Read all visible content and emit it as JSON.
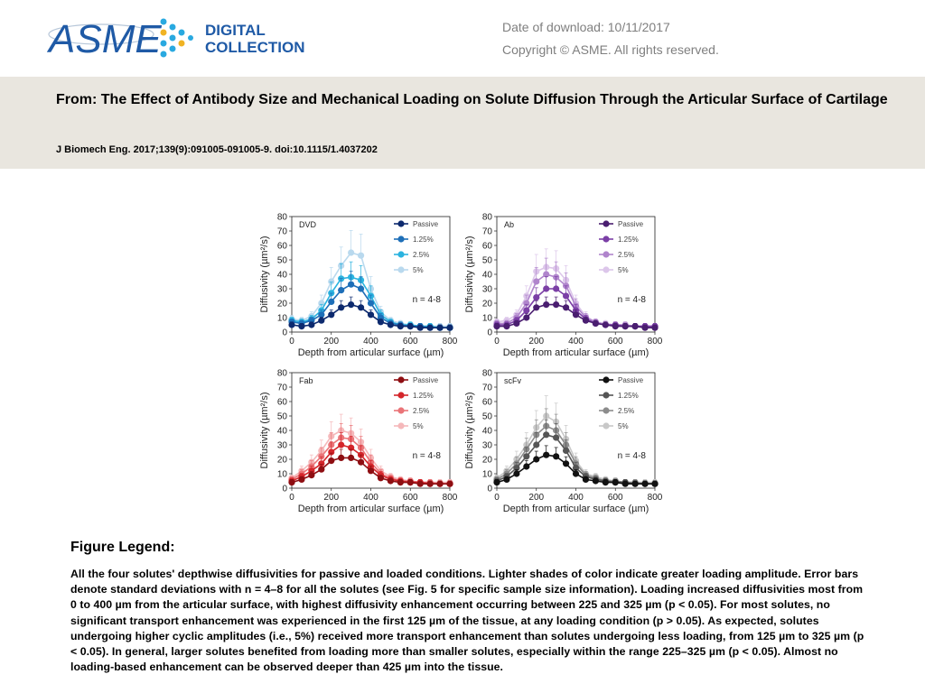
{
  "header": {
    "logo_text": "ASME",
    "logo_sub_1": "DIGITAL",
    "logo_sub_2": "COLLECTION",
    "download_date": "Date of download:  10/11/2017",
    "copyright": "Copyright © ASME. All rights reserved."
  },
  "article": {
    "from_line": "From: The Effect of Antibody Size and Mechanical Loading on Solute Diffusion Through the Articular Surface of Cartilage",
    "citation": "J Biomech Eng. 2017;139(9):091005-091005-9. doi:10.1115/1.4037202"
  },
  "legend": {
    "heading": "Figure Legend:",
    "text": "All the four solutes' depthwise diffusivities for passive and loaded conditions. Lighter shades of color indicate greater loading amplitude. Error bars denote standard deviations with n = 4–8 for all the solutes (see Fig. 5 for specific sample size information). Loading increased diffusivities most from 0 to 400 µm from the articular surface, with highest diffusivity enhancement occurring between 225 and 325 µm (p < 0.05). For most solutes, no significant transport enhancement was experienced in the first 125 µm of the tissue, at any loading condition (p > 0.05). As expected, solutes undergoing higher cyclic amplitudes (i.e., 5%) received more transport enhancement than solutes undergoing less loading, from 125 µm to 325 µm (p < 0.05). In general, larger solutes benefited from loading more than smaller solutes, especially within the range 225–325 µm (p < 0.05). Almost no loading-based enhancement can be observed deeper than 425 µm into the tissue."
  },
  "chart_data": [
    {
      "type": "line",
      "panel": "DVD",
      "annotation": "n = 4-8",
      "xlabel": "Depth from articular surface (µm)",
      "ylabel": "Diffusivity (µm²/s)",
      "xlim": [
        0,
        800
      ],
      "ylim": [
        0,
        80
      ],
      "xticks": [
        0,
        200,
        400,
        600,
        800
      ],
      "yticks": [
        0,
        10,
        20,
        30,
        40,
        50,
        60,
        70,
        80
      ],
      "x": [
        0,
        50,
        100,
        150,
        200,
        250,
        300,
        350,
        400,
        450,
        500,
        550,
        600,
        650,
        700,
        750,
        800
      ],
      "legend_position": "top-right",
      "series": [
        {
          "name": "Passive",
          "color": "#0d2a6e",
          "values": [
            5,
            4,
            5,
            8,
            12,
            17,
            19,
            17,
            12,
            7,
            5,
            4,
            4,
            3,
            3,
            3,
            3
          ]
        },
        {
          "name": "1.25%",
          "color": "#1e6fb8",
          "values": [
            7,
            6,
            8,
            12,
            21,
            29,
            33,
            30,
            20,
            10,
            6,
            5,
            4,
            4,
            3,
            3,
            3
          ]
        },
        {
          "name": "2.5%",
          "color": "#2bb3df",
          "values": [
            8,
            7,
            9,
            15,
            27,
            37,
            38,
            36,
            25,
            12,
            7,
            5,
            5,
            4,
            4,
            3,
            3
          ]
        },
        {
          "name": "5%",
          "color": "#b9d9ee",
          "values": [
            9,
            8,
            11,
            20,
            35,
            46,
            55,
            53,
            30,
            14,
            8,
            6,
            5,
            4,
            4,
            4,
            4
          ]
        }
      ]
    },
    {
      "type": "line",
      "panel": "Ab",
      "annotation": "n = 4-8",
      "xlabel": "Depth from articular surface (µm)",
      "ylabel": "Diffusivity (µm²/s)",
      "xlim": [
        0,
        800
      ],
      "ylim": [
        0,
        80
      ],
      "xticks": [
        0,
        200,
        400,
        600,
        800
      ],
      "yticks": [
        0,
        10,
        20,
        30,
        40,
        50,
        60,
        70,
        80
      ],
      "x": [
        0,
        50,
        100,
        150,
        200,
        250,
        300,
        350,
        400,
        450,
        500,
        550,
        600,
        650,
        700,
        750,
        800
      ],
      "legend_position": "top-right",
      "series": [
        {
          "name": "Passive",
          "color": "#4a1e70",
          "values": [
            4,
            4,
            6,
            10,
            17,
            19,
            19,
            17,
            12,
            8,
            6,
            5,
            4,
            4,
            4,
            3,
            3
          ]
        },
        {
          "name": "1.25%",
          "color": "#7b3fa6",
          "values": [
            5,
            5,
            8,
            15,
            24,
            30,
            30,
            25,
            15,
            9,
            6,
            5,
            5,
            4,
            4,
            4,
            4
          ]
        },
        {
          "name": "2.5%",
          "color": "#b085cc",
          "values": [
            6,
            6,
            10,
            20,
            35,
            40,
            38,
            32,
            18,
            10,
            7,
            5,
            5,
            5,
            4,
            4,
            4
          ]
        },
        {
          "name": "5%",
          "color": "#dcc6ea",
          "values": [
            7,
            8,
            12,
            25,
            42,
            45,
            44,
            36,
            20,
            11,
            7,
            6,
            5,
            5,
            4,
            4,
            4
          ]
        }
      ]
    },
    {
      "type": "line",
      "panel": "Fab",
      "annotation": "n = 4-8",
      "xlabel": "Depth from articular surface (µm)",
      "ylabel": "Diffusivity (µm²/s)",
      "xlim": [
        0,
        800
      ],
      "ylim": [
        0,
        80
      ],
      "xticks": [
        0,
        200,
        400,
        600,
        800
      ],
      "yticks": [
        0,
        10,
        20,
        30,
        40,
        50,
        60,
        70,
        80
      ],
      "x": [
        0,
        50,
        100,
        150,
        200,
        250,
        300,
        350,
        400,
        450,
        500,
        550,
        600,
        650,
        700,
        750,
        800
      ],
      "legend_position": "top-right",
      "series": [
        {
          "name": "Passive",
          "color": "#8e0e12",
          "values": [
            4,
            6,
            9,
            13,
            19,
            21,
            21,
            18,
            12,
            7,
            5,
            4,
            4,
            3,
            3,
            3,
            3
          ]
        },
        {
          "name": "1.25%",
          "color": "#d4262b",
          "values": [
            5,
            8,
            12,
            17,
            25,
            30,
            28,
            23,
            15,
            9,
            6,
            5,
            4,
            4,
            3,
            3,
            3
          ]
        },
        {
          "name": "2.5%",
          "color": "#ea7478",
          "values": [
            6,
            10,
            15,
            22,
            30,
            35,
            34,
            28,
            18,
            10,
            7,
            5,
            5,
            4,
            4,
            3,
            3
          ]
        },
        {
          "name": "5%",
          "color": "#f5b8ba",
          "values": [
            7,
            12,
            18,
            26,
            36,
            40,
            38,
            32,
            21,
            12,
            8,
            6,
            5,
            4,
            4,
            4,
            4
          ]
        }
      ]
    },
    {
      "type": "line",
      "panel": "scFv",
      "annotation": "n = 4-8",
      "xlabel": "Depth from articular surface (µm)",
      "ylabel": "Diffusivity (µm²/s)",
      "xlim": [
        0,
        800
      ],
      "ylim": [
        0,
        80
      ],
      "xticks": [
        0,
        200,
        400,
        600,
        800
      ],
      "yticks": [
        0,
        10,
        20,
        30,
        40,
        50,
        60,
        70,
        80
      ],
      "x": [
        0,
        50,
        100,
        150,
        200,
        250,
        300,
        350,
        400,
        450,
        500,
        550,
        600,
        650,
        700,
        750,
        800
      ],
      "legend_position": "top-right",
      "series": [
        {
          "name": "Passive",
          "color": "#111111",
          "values": [
            4,
            6,
            10,
            15,
            20,
            23,
            22,
            17,
            10,
            6,
            5,
            4,
            4,
            3,
            3,
            3,
            3
          ]
        },
        {
          "name": "1.25%",
          "color": "#555555",
          "values": [
            5,
            8,
            14,
            22,
            30,
            37,
            35,
            26,
            14,
            8,
            6,
            5,
            4,
            4,
            3,
            3,
            3
          ]
        },
        {
          "name": "2.5%",
          "color": "#8c8c8c",
          "values": [
            6,
            10,
            17,
            27,
            37,
            43,
            40,
            30,
            17,
            9,
            7,
            5,
            5,
            4,
            4,
            3,
            3
          ]
        },
        {
          "name": "5%",
          "color": "#c8c8c8",
          "values": [
            7,
            12,
            20,
            30,
            42,
            50,
            46,
            34,
            19,
            10,
            8,
            6,
            5,
            4,
            4,
            4,
            4
          ]
        }
      ]
    }
  ]
}
